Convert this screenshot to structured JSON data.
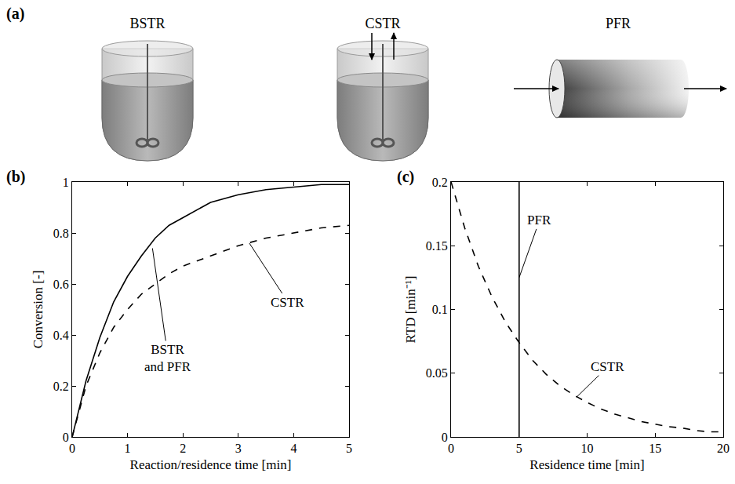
{
  "diagram": {
    "panel_label": "(a)",
    "reactors": [
      "BSTR",
      "CSTR",
      "PFR"
    ]
  },
  "chart_data": [
    {
      "panel_label": "(b)",
      "type": "line",
      "xlabel": "Reaction/residence time [min]",
      "ylabel": "Conversion [-]",
      "xlim": [
        0,
        5
      ],
      "ylim": [
        0,
        1
      ],
      "xticks": [
        0,
        1,
        2,
        3,
        4,
        5
      ],
      "yticks": [
        0,
        0.2,
        0.4,
        0.6,
        0.8,
        1
      ],
      "grid": false,
      "series": [
        {
          "name": "BSTR and PFR",
          "color": "#000000",
          "line_style": "solid",
          "x": [
            0,
            0.25,
            0.5,
            0.75,
            1,
            1.25,
            1.5,
            1.75,
            2,
            2.5,
            3,
            3.5,
            4,
            4.5,
            5
          ],
          "values": [
            0,
            0.22,
            0.39,
            0.53,
            0.63,
            0.71,
            0.78,
            0.83,
            0.86,
            0.92,
            0.95,
            0.97,
            0.98,
            0.99,
            0.99
          ]
        },
        {
          "name": "CSTR",
          "color": "#000000",
          "line_style": "dashed",
          "x": [
            0,
            0.25,
            0.5,
            0.75,
            1,
            1.25,
            1.5,
            1.75,
            2,
            2.5,
            3,
            3.5,
            4,
            4.5,
            5
          ],
          "values": [
            0,
            0.2,
            0.33,
            0.43,
            0.5,
            0.56,
            0.6,
            0.64,
            0.67,
            0.71,
            0.75,
            0.78,
            0.8,
            0.82,
            0.83
          ]
        }
      ],
      "annotations": [
        {
          "text": "BSTR and PFR",
          "x": 1.45,
          "y": 0.74
        },
        {
          "text": "CSTR",
          "x": 3.2,
          "y": 0.76
        }
      ]
    },
    {
      "panel_label": "(c)",
      "type": "line",
      "xlabel": "Residence time [min]",
      "ylabel": "RTD [min⁻¹]",
      "xlim": [
        0,
        20
      ],
      "ylim": [
        0,
        0.2
      ],
      "xticks": [
        0,
        5,
        10,
        15,
        20
      ],
      "yticks": [
        0,
        0.05,
        0.1,
        0.15,
        0.2
      ],
      "grid": false,
      "series": [
        {
          "name": "PFR",
          "color": "#000000",
          "line_style": "solid",
          "x": [
            5,
            5
          ],
          "values": [
            0,
            0.2
          ]
        },
        {
          "name": "CSTR",
          "color": "#000000",
          "line_style": "dashed",
          "x": [
            0,
            1,
            2,
            3,
            4,
            5,
            6,
            7,
            8,
            9,
            10,
            11,
            12,
            13,
            14,
            15,
            16,
            17,
            18,
            19,
            20
          ],
          "values": [
            0.2,
            0.164,
            0.134,
            0.11,
            0.09,
            0.074,
            0.06,
            0.049,
            0.04,
            0.033,
            0.027,
            0.022,
            0.018,
            0.015,
            0.012,
            0.01,
            0.008,
            0.007,
            0.005,
            0.004,
            0.004
          ]
        }
      ],
      "annotations": [
        {
          "text": "PFR",
          "x": 5,
          "y": 0.125
        },
        {
          "text": "CSTR",
          "x": 9.2,
          "y": 0.031
        }
      ]
    }
  ]
}
